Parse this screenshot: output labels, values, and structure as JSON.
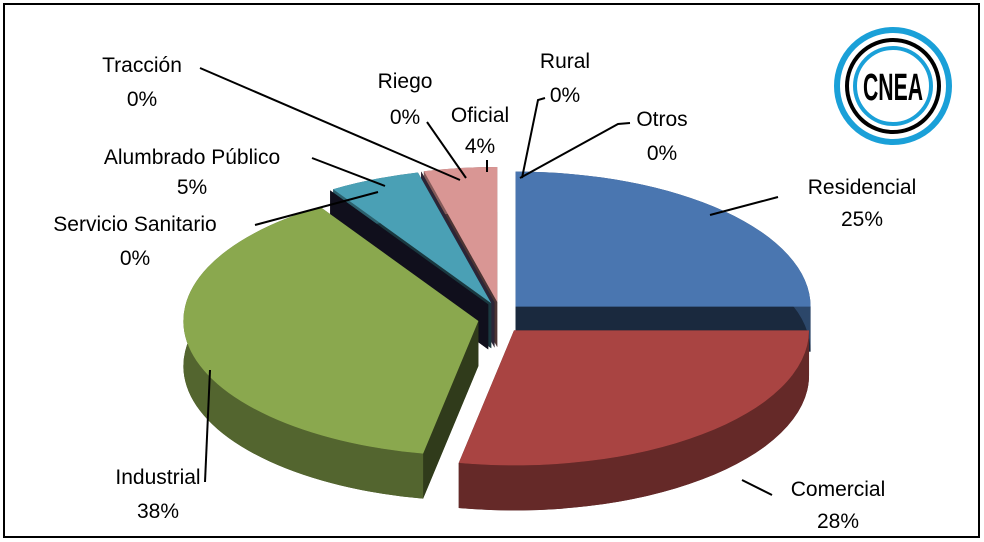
{
  "chart_data": {
    "type": "pie",
    "categories": [
      "Residencial",
      "Comercial",
      "Industrial",
      "Servicio Sanitario",
      "Alumbrado Público",
      "Tracción",
      "Riego",
      "Oficial",
      "Rural",
      "Otros"
    ],
    "values": [
      25,
      28,
      38,
      0,
      5,
      0,
      0,
      4,
      0,
      0
    ],
    "value_labels": [
      "25%",
      "28%",
      "38%",
      "0%",
      "5%",
      "0%",
      "0%",
      "4%",
      "0%",
      "0%"
    ],
    "colors": [
      "#4a76b0",
      "#a94442",
      "#8aa84e",
      "#2e2c50",
      "#4aa0b5",
      "#e08a3c",
      "#7f6a9e",
      "#d99694",
      "#8cb0d8",
      "#c0c0c0"
    ]
  },
  "logo": {
    "text": "CNEA"
  }
}
